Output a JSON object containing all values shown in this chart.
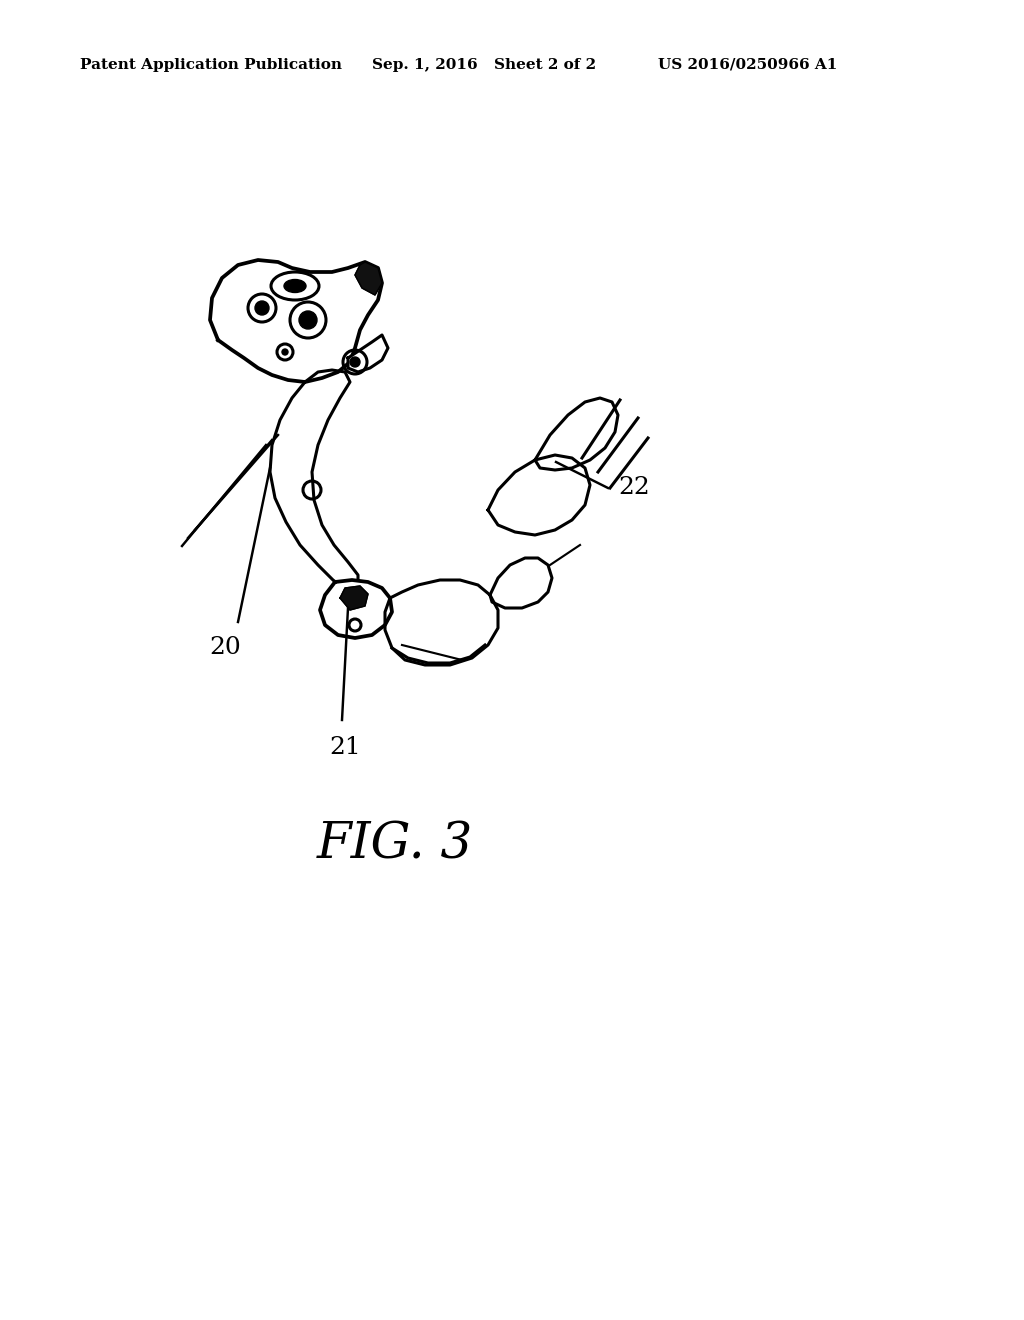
{
  "background_color": "#ffffff",
  "line_color": "#000000",
  "header_left": "Patent Application Publication",
  "header_mid1": "Sep. 1, 2016",
  "header_mid2": "Sheet 2 of 2",
  "header_right": "US 2016/0250966 A1",
  "figure_label": "FIG. 3",
  "label_20": "20",
  "label_21": "21",
  "label_22": "22",
  "header_fontsize": 11,
  "label_fontsize": 18,
  "fig_fontsize": 36,
  "lw": 2.2
}
